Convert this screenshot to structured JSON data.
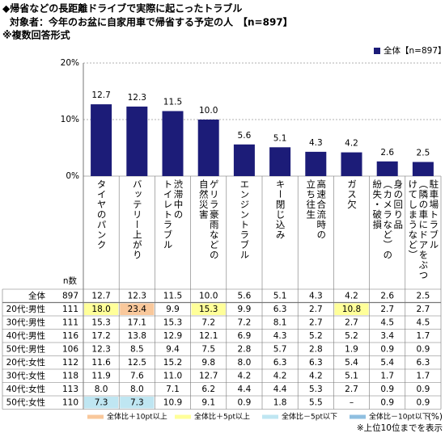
{
  "header": {
    "title": "◆帰省などの長距離ドライブで実際に起こったトラブル",
    "subtitle": "対象者：今年のお盆に自家用車で帰省する予定の人　【n=897】",
    "note": "※複数回答形式"
  },
  "chart_data": {
    "type": "bar",
    "categories": [
      "タイヤのパンク",
      "バッテリー上がり",
      "渋滞中の\nトイレトラブル",
      "ゲリラ豪雨などの\n自然災害",
      "エンジントラブル",
      "キー閉じ込み",
      "高速合流時の\n立ち往生",
      "ガス欠",
      "身の回り品\n（カメラなど）の\n紛失・破損",
      "駐車場トラブル\n（隣の車にドアをぶつ\nけてしまうなど）"
    ],
    "series": [
      {
        "name": "全体【n=897】",
        "color": "#1c1c78",
        "values": [
          12.7,
          12.3,
          11.5,
          10.0,
          5.6,
          5.1,
          4.3,
          4.2,
          2.6,
          2.5
        ],
        "value_labels": [
          "12.7",
          "12.3",
          "11.5",
          "10.0",
          "5.6",
          "5.1",
          "4.3",
          "4.2",
          "2.6",
          "2.5"
        ]
      }
    ],
    "ylim": [
      0,
      20
    ],
    "yticks": [
      {
        "value": 0,
        "label": "0%"
      },
      {
        "value": 10,
        "label": "10%"
      },
      {
        "value": 20,
        "label": "20%"
      }
    ],
    "grid": true,
    "legend": "top-right"
  },
  "table": {
    "n_header": "n数",
    "unit": "(%)",
    "rows": [
      [
        "全体",
        "897",
        "12.7",
        "12.3",
        "11.5",
        "10.0",
        "5.6",
        "5.1",
        "4.3",
        "4.2",
        "2.6",
        "2.5"
      ],
      [
        "20代:男性",
        "111",
        "18.0",
        "23.4",
        "9.9",
        "15.3",
        "9.9",
        "6.3",
        "2.7",
        "10.8",
        "2.7",
        "2.7"
      ],
      [
        "30代:男性",
        "111",
        "15.3",
        "17.1",
        "15.3",
        "7.2",
        "7.2",
        "8.1",
        "2.7",
        "2.7",
        "4.5",
        "4.5"
      ],
      [
        "40代:男性",
        "116",
        "17.2",
        "13.8",
        "12.9",
        "12.1",
        "6.9",
        "4.3",
        "5.2",
        "5.2",
        "3.4",
        "1.7"
      ],
      [
        "50代:男性",
        "106",
        "12.3",
        "8.5",
        "9.4",
        "7.5",
        "2.8",
        "5.7",
        "2.8",
        "1.9",
        "0.9",
        "0.9"
      ],
      [
        "20代:女性",
        "112",
        "11.6",
        "12.5",
        "15.2",
        "9.8",
        "8.0",
        "6.3",
        "6.3",
        "5.4",
        "5.4",
        "6.3"
      ],
      [
        "30代:女性",
        "118",
        "11.9",
        "7.6",
        "11.0",
        "12.7",
        "4.2",
        "4.2",
        "4.2",
        "5.1",
        "1.7",
        "1.7"
      ],
      [
        "40代:女性",
        "113",
        "8.0",
        "8.0",
        "7.1",
        "6.2",
        "4.4",
        "4.4",
        "5.3",
        "2.7",
        "0.9",
        "0.9"
      ],
      [
        "50代:女性",
        "110",
        "7.3",
        "7.3",
        "10.9",
        "9.1",
        "0.9",
        "1.8",
        "5.5",
        "–",
        "0.9",
        "0.9"
      ]
    ],
    "highlight_legend": [
      {
        "label": "全体比＋10pt以上",
        "color": "#f9c89b"
      },
      {
        "label": "全体比＋5pt以上",
        "color": "#ffff99"
      },
      {
        "label": "全体比－5pt以下",
        "color": "#bfe6f2"
      },
      {
        "label": "全体比－10pt以下",
        "color": "#8fbfe0"
      }
    ]
  },
  "footnote": "※上位10位までを表示"
}
